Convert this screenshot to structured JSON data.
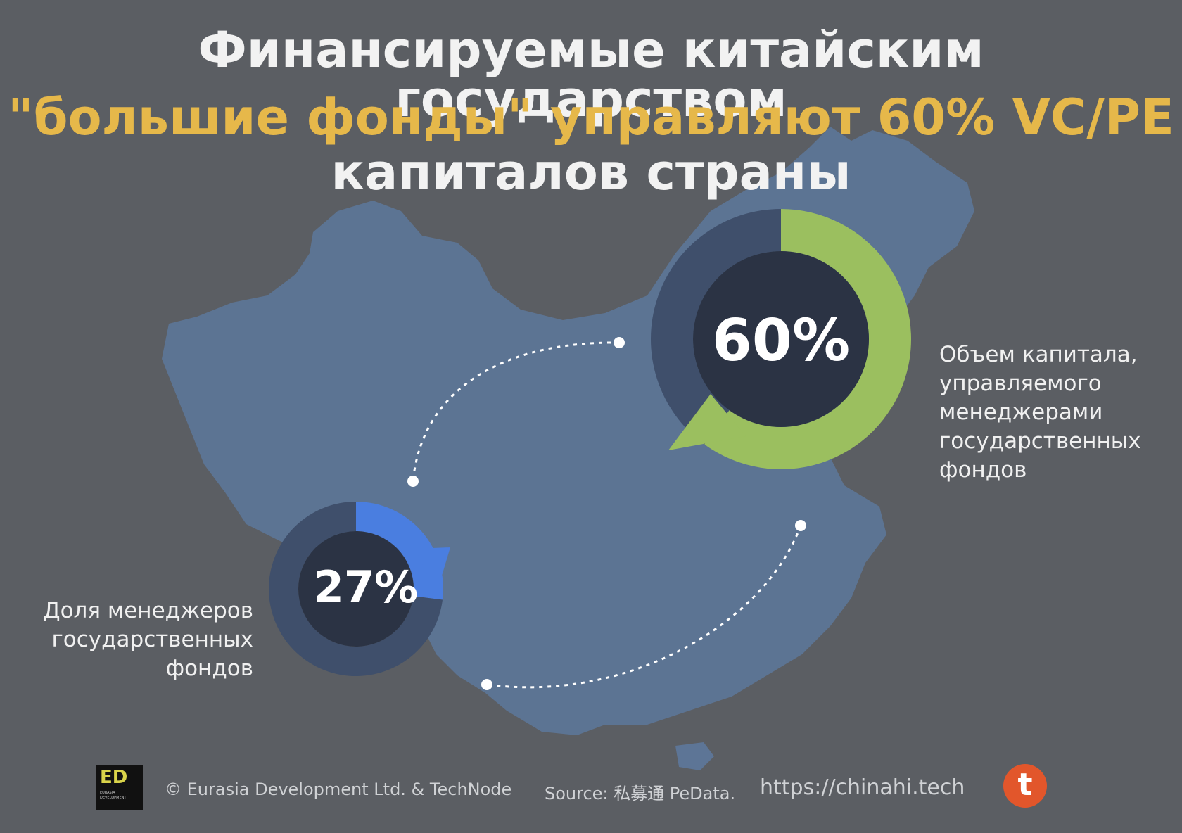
{
  "title": {
    "line1": "Финансируемые китайским государством",
    "line2": "\"большие фонды\" управляют 60% VC/PE",
    "line3": "капиталов страны"
  },
  "chart_data": [
    {
      "type": "pie",
      "variant": "donut",
      "value_label": "60%",
      "slices": [
        {
          "name": "Объем капитала, управляемого менеджерами государственных фондов",
          "value": 60,
          "color": "#9bbf5f"
        },
        {
          "name": "",
          "value": 40,
          "color": "#3f4f6b"
        }
      ]
    },
    {
      "type": "pie",
      "variant": "donut",
      "value_label": "27%",
      "slices": [
        {
          "name": "Доля менеджеров государственных фондов",
          "value": 27,
          "color": "#4a7ee0"
        },
        {
          "name": "",
          "value": 73,
          "color": "#3f4f6b"
        }
      ]
    }
  ],
  "labels": {
    "big": [
      "Объем капитала,",
      "управляемого",
      "менеджерами",
      "государственных",
      "фондов"
    ],
    "small": [
      "Доля менеджеров",
      "государственных",
      "фондов"
    ]
  },
  "footer": {
    "credit": "© Eurasia Development Ltd. & TechNode",
    "source": "Source: 私募通 PeData.",
    "url": "https://chinahi.tech",
    "ed_mark": "ED",
    "ed_sub": "EURASIA DEVELOPMENT",
    "t_logo": "t"
  },
  "colors": {
    "background": "#5b5e63",
    "map": "#5d7596",
    "donut_center": "#2b3344",
    "accent_title": "#e6b84a"
  }
}
